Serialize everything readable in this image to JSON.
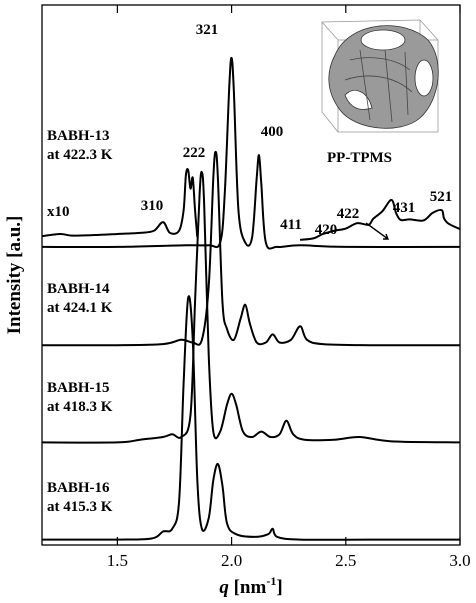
{
  "chart_data": {
    "type": "line",
    "xlabel": [
      "q",
      " [nm",
      "-1",
      "]"
    ],
    "ylabel": "Intensity [a.u.]",
    "xlim": [
      1.17,
      3.0
    ],
    "ylim": [
      0,
      100
    ],
    "xticks": [
      1.5,
      {
        "value": 2,
        "label": "2.0"
      },
      2.5,
      {
        "value": 3,
        "label": "3.0"
      }
    ],
    "series": [
      {
        "name": "BABH-16",
        "temperature": "at 415.3 K",
        "color": "#000000",
        "x": [
          1.17,
          1.5,
          1.65,
          1.7,
          1.74,
          1.77,
          1.79,
          1.81,
          1.83,
          1.85,
          1.87,
          1.9,
          1.92,
          1.94,
          1.96,
          1.98,
          2.02,
          2.1,
          2.16,
          2.18,
          2.2,
          2.3,
          2.6,
          3.0
        ],
        "values": [
          1,
          1,
          1.2,
          2.5,
          3,
          8,
          30,
          45.8,
          38,
          12,
          3,
          5,
          12,
          15,
          11,
          4,
          2,
          1.5,
          2,
          3,
          1.5,
          1,
          1,
          1
        ]
      },
      {
        "name": "BABH-15",
        "temperature": "at 418.3 K",
        "color": "#000000",
        "x": [
          1.17,
          1.5,
          1.6,
          1.7,
          1.74,
          1.78,
          1.82,
          1.84,
          1.86,
          1.87,
          1.88,
          1.9,
          1.92,
          1.95,
          1.98,
          2.0,
          2.02,
          2.05,
          2.09,
          2.13,
          2.17,
          2.21,
          2.24,
          2.27,
          2.32,
          2.45,
          2.56,
          2.7,
          3.0
        ],
        "values": [
          19,
          19,
          19.5,
          20,
          20.5,
          20,
          24,
          45,
          65,
          69,
          63,
          35,
          21,
          21,
          26,
          28,
          26,
          21,
          20,
          21,
          20,
          20.5,
          23,
          20.5,
          19.5,
          19.5,
          20,
          19.2,
          19
        ]
      },
      {
        "name": "BABH-14",
        "temperature": "at 424.1 K",
        "color": "#000000",
        "x": [
          1.17,
          1.5,
          1.7,
          1.78,
          1.83,
          1.87,
          1.9,
          1.92,
          1.93,
          1.94,
          1.96,
          1.98,
          2.01,
          2.04,
          2.06,
          2.08,
          2.11,
          2.15,
          2.18,
          2.21,
          2.26,
          2.3,
          2.33,
          2.4,
          2.6,
          3.0
        ],
        "values": [
          37,
          37,
          37.2,
          38,
          37.5,
          38,
          48,
          68,
          72.8,
          68,
          45,
          40,
          38,
          42,
          44.5,
          41,
          37.5,
          37.5,
          39,
          37.5,
          38,
          40.5,
          38,
          37.2,
          37,
          37
        ]
      },
      {
        "name": "BABH-13",
        "temperature": "at 422.3 K",
        "color": "#000000",
        "x": [
          1.17,
          1.5,
          1.8,
          1.9,
          1.95,
          1.97,
          1.99,
          2.0,
          2.01,
          2.03,
          2.06,
          2.09,
          2.11,
          2.12,
          2.13,
          2.15,
          2.2,
          2.3,
          2.5,
          3.0
        ],
        "values": [
          55.2,
          55.2,
          55.5,
          55.5,
          56,
          65,
          85,
          90.2,
          84,
          62,
          56,
          57,
          68,
          72.2,
          67,
          56,
          55.2,
          55.5,
          55.2,
          55.2
        ]
      },
      {
        "name": "x10",
        "color": "#000000",
        "x": [
          1.17,
          1.25,
          1.3,
          1.4,
          1.5,
          1.6,
          1.66,
          1.7,
          1.73,
          1.77,
          1.79,
          1.8,
          1.81,
          1.82,
          1.83,
          1.84,
          1.85,
          2.0,
          2.3,
          2.36,
          2.4,
          2.45,
          2.5,
          2.55,
          2.6,
          2.62,
          2.66,
          2.7,
          2.72,
          2.74,
          2.78,
          2.84,
          2.88,
          2.92,
          2.93,
          2.95,
          3.0
        ],
        "values": [
          57.2,
          57.6,
          57.3,
          57.4,
          57.6,
          57.8,
          58.2,
          59.8,
          57.8,
          58.2,
          62,
          68.5,
          69.4,
          66,
          68,
          62,
          57,
          null,
          56.5,
          56.8,
          57.6,
          58.2,
          58.6,
          59.6,
          59.3,
          60.4,
          61.8,
          63.9,
          61.5,
          60.2,
          60.3,
          60.1,
          61.5,
          62,
          60.5,
          59.5,
          58.5
        ]
      }
    ],
    "annotations": [
      "321",
      "222",
      "310",
      "400",
      "411",
      "420",
      "422",
      "431",
      "521",
      "PP-TPMS"
    ]
  }
}
